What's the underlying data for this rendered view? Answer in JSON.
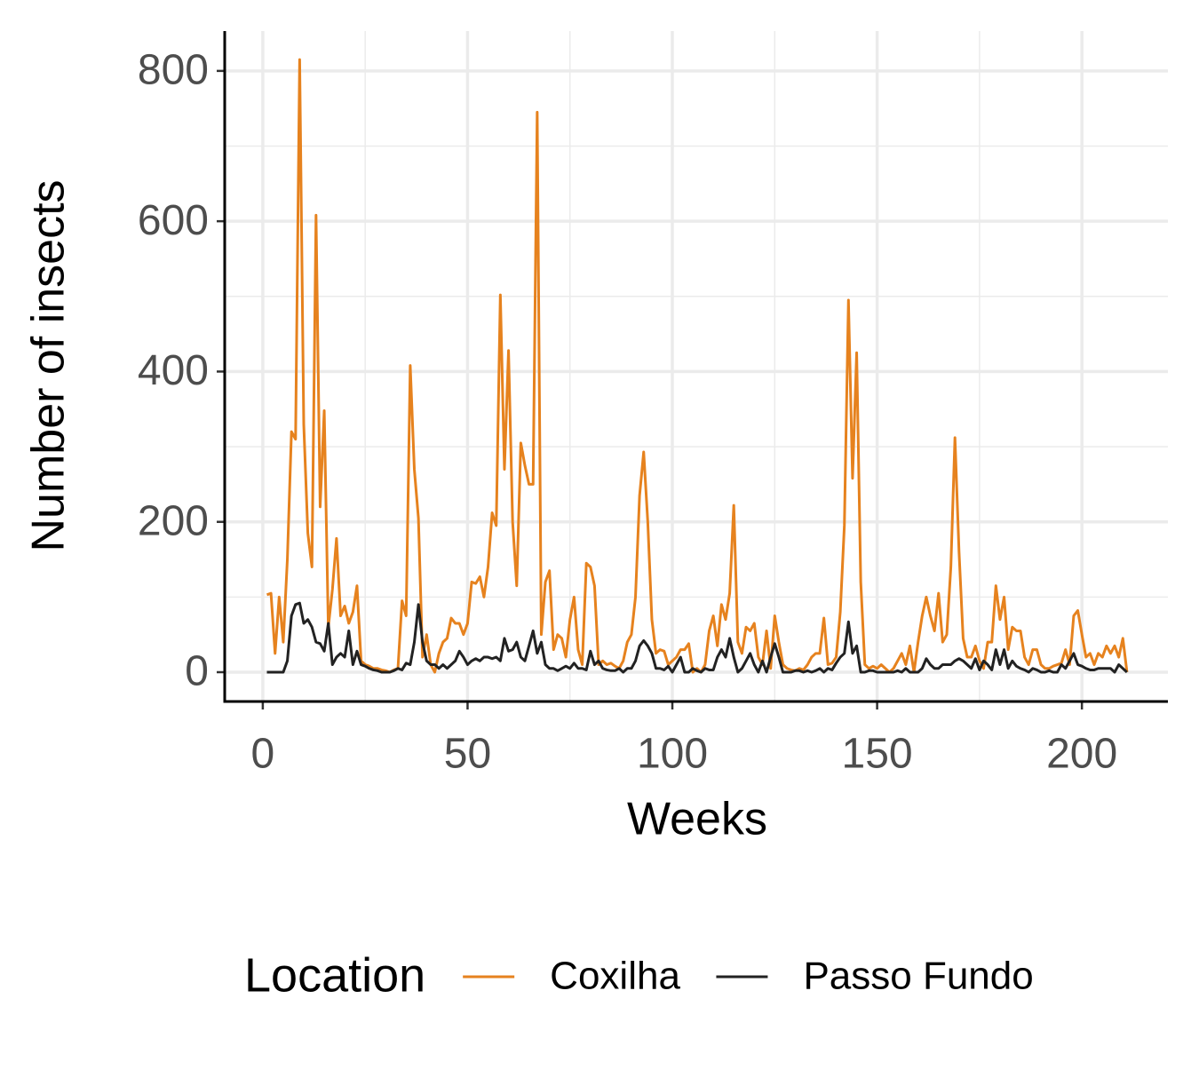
{
  "chart_data": {
    "type": "line",
    "x_label": "Weeks",
    "y_label": "Number of insects",
    "x": [
      1,
      2,
      3,
      4,
      5,
      6,
      7,
      8,
      9,
      10,
      11,
      12,
      13,
      14,
      15,
      16,
      17,
      18,
      19,
      20,
      21,
      22,
      23,
      24,
      25,
      26,
      27,
      28,
      29,
      30,
      31,
      32,
      33,
      34,
      35,
      36,
      37,
      38,
      39,
      40,
      41,
      42,
      43,
      44,
      45,
      46,
      47,
      48,
      49,
      50,
      51,
      52,
      53,
      54,
      55,
      56,
      57,
      58,
      59,
      60,
      61,
      62,
      63,
      64,
      65,
      66,
      67,
      68,
      69,
      70,
      71,
      72,
      73,
      74,
      75,
      76,
      77,
      78,
      79,
      80,
      81,
      82,
      83,
      84,
      85,
      86,
      87,
      88,
      89,
      90,
      91,
      92,
      93,
      94,
      95,
      96,
      97,
      98,
      99,
      100,
      101,
      102,
      103,
      104,
      105,
      106,
      107,
      108,
      109,
      110,
      111,
      112,
      113,
      114,
      115,
      116,
      117,
      118,
      119,
      120,
      121,
      122,
      123,
      124,
      125,
      126,
      127,
      128,
      129,
      130,
      131,
      132,
      133,
      134,
      135,
      136,
      137,
      138,
      139,
      140,
      141,
      142,
      143,
      144,
      145,
      146,
      147,
      148,
      149,
      150,
      151,
      152,
      153,
      154,
      155,
      156,
      157,
      158,
      159,
      160,
      161,
      162,
      163,
      164,
      165,
      166,
      167,
      168,
      169,
      170,
      171,
      172,
      173,
      174,
      175,
      176,
      177,
      178,
      179,
      180,
      181,
      182,
      183,
      184,
      185,
      186,
      187,
      188,
      189,
      190,
      191,
      192,
      193,
      194,
      195,
      196,
      197,
      198,
      199,
      200,
      201,
      202,
      203,
      204,
      205,
      206,
      207,
      208,
      209,
      210,
      211
    ],
    "series": [
      {
        "name": "Coxilha",
        "color": "#e6821e",
        "values": [
          103,
          105,
          25,
          100,
          40,
          150,
          320,
          310,
          815,
          330,
          185,
          140,
          608,
          220,
          348,
          60,
          110,
          178,
          75,
          88,
          65,
          80,
          115,
          15,
          10,
          8,
          5,
          5,
          3,
          2,
          0,
          3,
          5,
          95,
          75,
          408,
          270,
          205,
          20,
          50,
          10,
          0,
          25,
          40,
          45,
          72,
          65,
          65,
          50,
          65,
          120,
          118,
          127,
          100,
          140,
          212,
          195,
          502,
          270,
          428,
          200,
          115,
          305,
          275,
          250,
          250,
          745,
          50,
          120,
          135,
          30,
          50,
          45,
          20,
          70,
          100,
          30,
          10,
          145,
          140,
          115,
          10,
          15,
          10,
          12,
          8,
          5,
          15,
          40,
          50,
          100,
          235,
          293,
          200,
          70,
          25,
          30,
          28,
          10,
          15,
          20,
          30,
          30,
          38,
          0,
          5,
          0,
          10,
          55,
          75,
          35,
          90,
          70,
          105,
          222,
          40,
          25,
          60,
          55,
          65,
          20,
          10,
          55,
          5,
          75,
          40,
          10,
          5,
          3,
          2,
          5,
          3,
          10,
          20,
          25,
          25,
          72,
          10,
          12,
          20,
          80,
          195,
          495,
          258,
          425,
          120,
          10,
          5,
          8,
          5,
          10,
          5,
          0,
          5,
          15,
          25,
          10,
          35,
          0,
          40,
          75,
          100,
          75,
          55,
          105,
          40,
          50,
          140,
          312,
          160,
          45,
          20,
          20,
          35,
          15,
          5,
          40,
          40,
          115,
          70,
          100,
          30,
          60,
          55,
          55,
          20,
          10,
          30,
          30,
          10,
          5,
          5,
          8,
          10,
          12,
          30,
          10,
          75,
          82,
          50,
          20,
          25,
          10,
          25,
          20,
          35,
          25,
          35,
          20,
          45,
          0
        ]
      },
      {
        "name": "Passo Fundo",
        "color": "#222222",
        "values": [
          0,
          0,
          0,
          0,
          0,
          15,
          75,
          90,
          92,
          65,
          70,
          60,
          40,
          38,
          28,
          65,
          10,
          20,
          25,
          20,
          55,
          10,
          28,
          10,
          8,
          5,
          3,
          2,
          0,
          0,
          0,
          2,
          5,
          3,
          12,
          10,
          40,
          90,
          40,
          15,
          10,
          10,
          5,
          10,
          5,
          10,
          15,
          28,
          20,
          10,
          15,
          18,
          15,
          20,
          20,
          18,
          20,
          15,
          45,
          28,
          30,
          40,
          20,
          15,
          35,
          55,
          25,
          40,
          10,
          5,
          5,
          2,
          5,
          8,
          5,
          12,
          5,
          5,
          3,
          28,
          10,
          15,
          5,
          3,
          2,
          2,
          5,
          0,
          5,
          5,
          15,
          35,
          42,
          35,
          25,
          5,
          5,
          3,
          8,
          0,
          10,
          20,
          0,
          0,
          5,
          2,
          0,
          5,
          3,
          3,
          20,
          30,
          20,
          45,
          20,
          0,
          5,
          15,
          25,
          10,
          0,
          15,
          0,
          20,
          38,
          20,
          0,
          0,
          0,
          2,
          2,
          0,
          2,
          0,
          2,
          5,
          0,
          5,
          3,
          12,
          20,
          25,
          67,
          25,
          35,
          0,
          0,
          2,
          2,
          0,
          0,
          0,
          0,
          0,
          2,
          0,
          5,
          0,
          0,
          0,
          5,
          18,
          10,
          5,
          5,
          10,
          10,
          10,
          15,
          18,
          15,
          10,
          5,
          18,
          3,
          15,
          10,
          3,
          30,
          10,
          30,
          5,
          15,
          8,
          5,
          3,
          0,
          5,
          3,
          0,
          0,
          2,
          0,
          0,
          10,
          5,
          15,
          25,
          10,
          8,
          5,
          3,
          3,
          5,
          5,
          5,
          5,
          0,
          10,
          5,
          0
        ]
      }
    ],
    "xlim": [
      -9.3,
      221
    ],
    "xticks": [
      0,
      50,
      100,
      150,
      200
    ],
    "ylim": [
      -39,
      853
    ],
    "yticks": [
      0,
      200,
      400,
      600,
      800
    ],
    "grid": true,
    "legend_title": "Location",
    "legend_position": "bottom"
  }
}
